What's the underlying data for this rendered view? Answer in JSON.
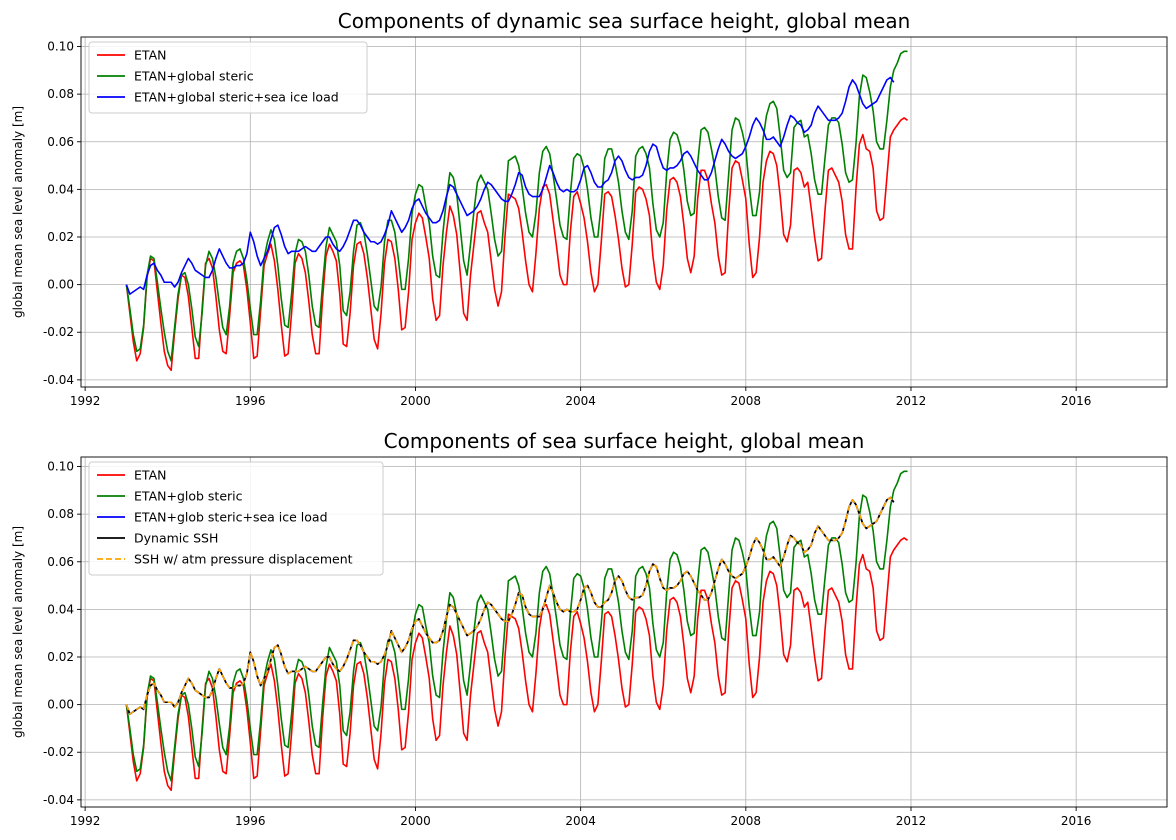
{
  "chart_data": [
    {
      "type": "line",
      "title": "Components of dynamic sea surface height, global mean",
      "xlabel": "",
      "ylabel": "global mean sea level anomaly [m]",
      "xlim": [
        1991.9,
        2018.2
      ],
      "ylim": [
        -0.043,
        0.104
      ],
      "xticks": [
        1992,
        1996,
        2000,
        2004,
        2008,
        2012,
        2016
      ],
      "xtick_labels": [
        "1992",
        "1996",
        "2000",
        "2004",
        "2008",
        "2012",
        "2016"
      ],
      "yticks": [
        -0.04,
        -0.02,
        0.0,
        0.02,
        0.04,
        0.06,
        0.08,
        0.1
      ],
      "ytick_labels": [
        "-0.04",
        "-0.02",
        "0.00",
        "0.02",
        "0.04",
        "0.06",
        "0.08",
        "0.10"
      ],
      "grid": true,
      "legend_position": "upper-left",
      "x_start": 1993.0,
      "x_step_years": 0.0833333,
      "series": [
        {
          "name": "ETAN",
          "color": "#ff0000",
          "dash": "solid",
          "values": [
            0.0,
            -0.012,
            -0.024,
            -0.032,
            -0.029,
            -0.018,
            0.003,
            0.011,
            0.01,
            -0.003,
            -0.016,
            -0.028,
            -0.034,
            -0.036,
            -0.02,
            -0.006,
            0.004,
            0.003,
            -0.005,
            -0.018,
            -0.031,
            -0.031,
            -0.01,
            0.009,
            0.011,
            0.007,
            -0.005,
            -0.019,
            -0.028,
            -0.029,
            -0.013,
            0.005,
            0.009,
            0.01,
            0.008,
            -0.002,
            -0.016,
            -0.031,
            -0.03,
            -0.011,
            0.008,
            0.013,
            0.017,
            0.01,
            -0.002,
            -0.017,
            -0.03,
            -0.029,
            -0.012,
            0.009,
            0.013,
            0.011,
            0.005,
            -0.007,
            -0.021,
            -0.029,
            -0.029,
            -0.006,
            0.012,
            0.017,
            0.014,
            0.01,
            -0.004,
            -0.025,
            -0.026,
            -0.012,
            0.008,
            0.017,
            0.018,
            0.013,
            0.003,
            -0.01,
            -0.023,
            -0.027,
            -0.012,
            0.009,
            0.019,
            0.018,
            0.011,
            -0.002,
            -0.019,
            -0.018,
            -0.003,
            0.019,
            0.026,
            0.03,
            0.028,
            0.02,
            0.011,
            -0.006,
            -0.015,
            -0.013,
            0.008,
            0.022,
            0.033,
            0.029,
            0.021,
            0.005,
            -0.012,
            -0.015,
            0.004,
            0.017,
            0.03,
            0.031,
            0.026,
            0.022,
            0.01,
            -0.002,
            -0.009,
            -0.003,
            0.02,
            0.038,
            0.037,
            0.036,
            0.032,
            0.022,
            0.01,
            0.0,
            -0.003,
            0.013,
            0.032,
            0.041,
            0.042,
            0.038,
            0.027,
            0.016,
            0.004,
            0.0,
            0.0,
            0.022,
            0.037,
            0.039,
            0.034,
            0.028,
            0.018,
            0.005,
            -0.003,
            0.0,
            0.018,
            0.038,
            0.039,
            0.037,
            0.029,
            0.019,
            0.007,
            -0.001,
            0.0,
            0.017,
            0.039,
            0.041,
            0.04,
            0.036,
            0.029,
            0.012,
            0.001,
            -0.002,
            0.008,
            0.031,
            0.044,
            0.045,
            0.043,
            0.037,
            0.025,
            0.011,
            0.005,
            0.012,
            0.036,
            0.048,
            0.048,
            0.044,
            0.034,
            0.026,
            0.012,
            0.004,
            0.005,
            0.03,
            0.049,
            0.052,
            0.051,
            0.044,
            0.036,
            0.017,
            0.003,
            0.005,
            0.02,
            0.043,
            0.052,
            0.056,
            0.055,
            0.05,
            0.037,
            0.021,
            0.018,
            0.025,
            0.048,
            0.049,
            0.047,
            0.041,
            0.043,
            0.032,
            0.02,
            0.01,
            0.011,
            0.031,
            0.048,
            0.049,
            0.046,
            0.043,
            0.035,
            0.021,
            0.015,
            0.015,
            0.04,
            0.059,
            0.063,
            0.057,
            0.056,
            0.049,
            0.031,
            0.027,
            0.028,
            0.045,
            0.062,
            0.065,
            0.067,
            0.069,
            0.07,
            0.069
          ]
        },
        {
          "name": "ETAN+global steric",
          "color": "#008000",
          "dash": "solid",
          "values": [
            0.0,
            -0.01,
            -0.021,
            -0.028,
            -0.027,
            -0.017,
            0.004,
            0.012,
            0.011,
            0.001,
            -0.01,
            -0.02,
            -0.028,
            -0.032,
            -0.018,
            -0.004,
            0.004,
            0.005,
            0.0,
            -0.01,
            -0.022,
            -0.026,
            -0.012,
            0.008,
            0.014,
            0.011,
            0.003,
            -0.008,
            -0.018,
            -0.021,
            -0.009,
            0.009,
            0.014,
            0.015,
            0.011,
            0.002,
            -0.01,
            -0.021,
            -0.021,
            -0.007,
            0.011,
            0.018,
            0.023,
            0.019,
            0.008,
            -0.006,
            -0.017,
            -0.018,
            -0.004,
            0.013,
            0.019,
            0.018,
            0.014,
            0.004,
            -0.009,
            -0.017,
            -0.018,
            0.0,
            0.016,
            0.024,
            0.021,
            0.018,
            0.008,
            -0.011,
            -0.013,
            -0.003,
            0.014,
            0.025,
            0.026,
            0.022,
            0.013,
            0.002,
            -0.009,
            -0.011,
            -0.001,
            0.018,
            0.027,
            0.027,
            0.022,
            0.011,
            -0.002,
            -0.002,
            0.011,
            0.03,
            0.038,
            0.042,
            0.041,
            0.033,
            0.026,
            0.012,
            0.004,
            0.003,
            0.022,
            0.036,
            0.047,
            0.045,
            0.038,
            0.024,
            0.01,
            0.004,
            0.017,
            0.031,
            0.043,
            0.046,
            0.043,
            0.04,
            0.03,
            0.019,
            0.012,
            0.014,
            0.033,
            0.052,
            0.053,
            0.054,
            0.05,
            0.041,
            0.03,
            0.022,
            0.02,
            0.03,
            0.047,
            0.056,
            0.058,
            0.055,
            0.046,
            0.036,
            0.025,
            0.02,
            0.019,
            0.038,
            0.053,
            0.055,
            0.054,
            0.049,
            0.04,
            0.028,
            0.02,
            0.02,
            0.034,
            0.053,
            0.057,
            0.057,
            0.051,
            0.043,
            0.031,
            0.022,
            0.019,
            0.031,
            0.054,
            0.057,
            0.058,
            0.055,
            0.049,
            0.034,
            0.023,
            0.02,
            0.026,
            0.047,
            0.061,
            0.064,
            0.063,
            0.058,
            0.048,
            0.035,
            0.029,
            0.03,
            0.051,
            0.065,
            0.066,
            0.064,
            0.057,
            0.049,
            0.037,
            0.028,
            0.027,
            0.046,
            0.065,
            0.07,
            0.069,
            0.064,
            0.057,
            0.041,
            0.029,
            0.029,
            0.039,
            0.061,
            0.071,
            0.076,
            0.077,
            0.074,
            0.062,
            0.048,
            0.045,
            0.047,
            0.066,
            0.068,
            0.069,
            0.062,
            0.063,
            0.055,
            0.044,
            0.038,
            0.038,
            0.053,
            0.067,
            0.07,
            0.07,
            0.068,
            0.059,
            0.047,
            0.043,
            0.044,
            0.059,
            0.079,
            0.088,
            0.087,
            0.081,
            0.073,
            0.06,
            0.057,
            0.057,
            0.069,
            0.083,
            0.09,
            0.093,
            0.097,
            0.098,
            0.098
          ]
        },
        {
          "name": "ETAN+global steric+sea ice load",
          "color": "#0000ff",
          "dash": "solid",
          "values": [
            0.0,
            -0.004,
            -0.003,
            -0.002,
            -0.001,
            -0.002,
            0.004,
            0.008,
            0.009,
            0.006,
            0.004,
            0.001,
            0.001,
            0.001,
            -0.001,
            0.001,
            0.005,
            0.008,
            0.011,
            0.009,
            0.006,
            0.005,
            0.004,
            0.003,
            0.003,
            0.006,
            0.011,
            0.015,
            0.012,
            0.009,
            0.007,
            0.007,
            0.008,
            0.008,
            0.009,
            0.013,
            0.022,
            0.018,
            0.012,
            0.008,
            0.011,
            0.014,
            0.019,
            0.024,
            0.025,
            0.021,
            0.016,
            0.013,
            0.014,
            0.014,
            0.014,
            0.015,
            0.016,
            0.015,
            0.014,
            0.014,
            0.016,
            0.018,
            0.02,
            0.02,
            0.017,
            0.015,
            0.014,
            0.016,
            0.019,
            0.023,
            0.027,
            0.027,
            0.025,
            0.022,
            0.02,
            0.018,
            0.018,
            0.017,
            0.018,
            0.021,
            0.025,
            0.031,
            0.028,
            0.025,
            0.022,
            0.024,
            0.027,
            0.032,
            0.035,
            0.036,
            0.033,
            0.03,
            0.028,
            0.026,
            0.026,
            0.027,
            0.031,
            0.037,
            0.042,
            0.041,
            0.038,
            0.035,
            0.032,
            0.029,
            0.03,
            0.031,
            0.033,
            0.036,
            0.04,
            0.043,
            0.042,
            0.04,
            0.038,
            0.036,
            0.035,
            0.035,
            0.038,
            0.042,
            0.047,
            0.046,
            0.041,
            0.038,
            0.037,
            0.037,
            0.037,
            0.04,
            0.045,
            0.05,
            0.047,
            0.043,
            0.04,
            0.039,
            0.04,
            0.039,
            0.039,
            0.04,
            0.044,
            0.049,
            0.05,
            0.047,
            0.043,
            0.041,
            0.041,
            0.043,
            0.044,
            0.047,
            0.052,
            0.054,
            0.052,
            0.048,
            0.045,
            0.044,
            0.045,
            0.045,
            0.046,
            0.05,
            0.056,
            0.059,
            0.058,
            0.053,
            0.049,
            0.048,
            0.049,
            0.049,
            0.05,
            0.052,
            0.055,
            0.056,
            0.054,
            0.051,
            0.048,
            0.046,
            0.044,
            0.044,
            0.047,
            0.052,
            0.057,
            0.061,
            0.059,
            0.056,
            0.054,
            0.053,
            0.054,
            0.055,
            0.058,
            0.062,
            0.067,
            0.07,
            0.068,
            0.065,
            0.061,
            0.061,
            0.062,
            0.06,
            0.058,
            0.062,
            0.067,
            0.071,
            0.07,
            0.068,
            0.067,
            0.064,
            0.065,
            0.067,
            0.072,
            0.075,
            0.073,
            0.071,
            0.069,
            0.069,
            0.069,
            0.07,
            0.072,
            0.077,
            0.083,
            0.086,
            0.084,
            0.08,
            0.076,
            0.074,
            0.075,
            0.076,
            0.077,
            0.08,
            0.083,
            0.086,
            0.087,
            0.085
          ]
        }
      ]
    },
    {
      "type": "line",
      "title": "Components of sea surface height, global mean",
      "xlabel": "",
      "ylabel": "global mean sea level anomaly [m]",
      "xlim": [
        1991.9,
        2018.2
      ],
      "ylim": [
        -0.043,
        0.104
      ],
      "xticks": [
        1992,
        1996,
        2000,
        2004,
        2008,
        2012,
        2016
      ],
      "xtick_labels": [
        "1992",
        "1996",
        "2000",
        "2004",
        "2008",
        "2012",
        "2016"
      ],
      "yticks": [
        -0.04,
        -0.02,
        0.0,
        0.02,
        0.04,
        0.06,
        0.08,
        0.1
      ],
      "ytick_labels": [
        "-0.04",
        "-0.02",
        "0.00",
        "0.02",
        "0.04",
        "0.06",
        "0.08",
        "0.10"
      ],
      "grid": true,
      "legend_position": "upper-left",
      "x_start": 1993.0,
      "x_step_years": 0.0833333,
      "series": [
        {
          "name": "ETAN",
          "color": "#ff0000",
          "dash": "solid",
          "values": "same as ETAN in first chart"
        },
        {
          "name": "ETAN+glob steric",
          "color": "#008000",
          "dash": "solid",
          "values": "same as ETAN+global steric in first chart"
        },
        {
          "name": "ETAN+glob steric+sea ice load",
          "color": "#0000ff",
          "dash": "solid",
          "values": "same as ETAN+global steric+sea ice load in first chart"
        },
        {
          "name": "Dynamic SSH",
          "color": "#000000",
          "dash": "solid",
          "values": "same as ETAN+global steric+sea ice load in first chart"
        },
        {
          "name": "SSH w/ atm pressure displacement",
          "color": "#ffa500",
          "dash": "dashed",
          "values": "same as ETAN+global steric+sea ice load in first chart"
        }
      ]
    }
  ]
}
